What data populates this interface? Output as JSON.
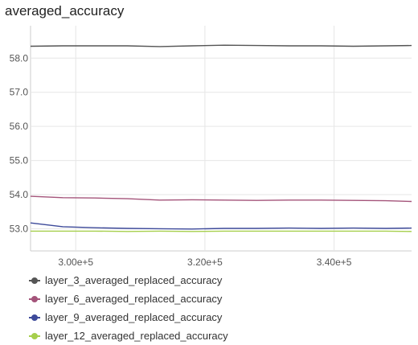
{
  "chart_data": {
    "type": "line",
    "title": "averaged_accuracy",
    "xlabel": "",
    "ylabel": "",
    "xlim": [
      293000,
      352000
    ],
    "ylim": [
      52.35,
      58.95
    ],
    "x_ticks": [
      {
        "value": 300000,
        "label": "3.00e+5"
      },
      {
        "value": 320000,
        "label": "3.20e+5"
      },
      {
        "value": 340000,
        "label": "3.40e+5"
      }
    ],
    "y_ticks": [
      {
        "value": 53.0,
        "label": "53.0"
      },
      {
        "value": 54.0,
        "label": "54.0"
      },
      {
        "value": 55.0,
        "label": "55.0"
      },
      {
        "value": 56.0,
        "label": "56.0"
      },
      {
        "value": 57.0,
        "label": "57.0"
      },
      {
        "value": 58.0,
        "label": "58.0"
      }
    ],
    "grid": true,
    "legend_position": "bottom",
    "series": [
      {
        "name": "layer_3_averaged_replaced_accuracy",
        "color": "#555555",
        "x": [
          293000,
          298000,
          303000,
          308000,
          313000,
          318000,
          323000,
          328000,
          333000,
          338000,
          343000,
          348000,
          352000
        ],
        "y": [
          58.35,
          58.36,
          58.36,
          58.36,
          58.34,
          58.36,
          58.38,
          58.37,
          58.36,
          58.36,
          58.35,
          58.36,
          58.37
        ]
      },
      {
        "name": "layer_6_averaged_replaced_accuracy",
        "color": "#a4547a",
        "x": [
          293000,
          298000,
          303000,
          308000,
          313000,
          318000,
          323000,
          328000,
          333000,
          338000,
          343000,
          348000,
          352000
        ],
        "y": [
          53.95,
          53.91,
          53.9,
          53.88,
          53.84,
          53.85,
          53.84,
          53.83,
          53.84,
          53.84,
          53.83,
          53.82,
          53.8
        ]
      },
      {
        "name": "layer_9_averaged_replaced_accuracy",
        "color": "#3d4a9a",
        "x": [
          293000,
          298000,
          303000,
          308000,
          313000,
          318000,
          323000,
          328000,
          333000,
          338000,
          343000,
          348000,
          352000
        ],
        "y": [
          53.17,
          53.06,
          53.03,
          53.01,
          53.0,
          52.99,
          53.01,
          53.01,
          53.02,
          53.01,
          53.02,
          53.01,
          53.02
        ]
      },
      {
        "name": "layer_12_averaged_replaced_accuracy",
        "color": "#a6cf4c",
        "x": [
          293000,
          298000,
          303000,
          308000,
          313000,
          318000,
          323000,
          328000,
          333000,
          338000,
          343000,
          348000,
          352000
        ],
        "y": [
          52.93,
          52.93,
          52.93,
          52.92,
          52.93,
          52.92,
          52.93,
          52.93,
          52.93,
          52.93,
          52.93,
          52.93,
          52.92
        ]
      }
    ]
  }
}
